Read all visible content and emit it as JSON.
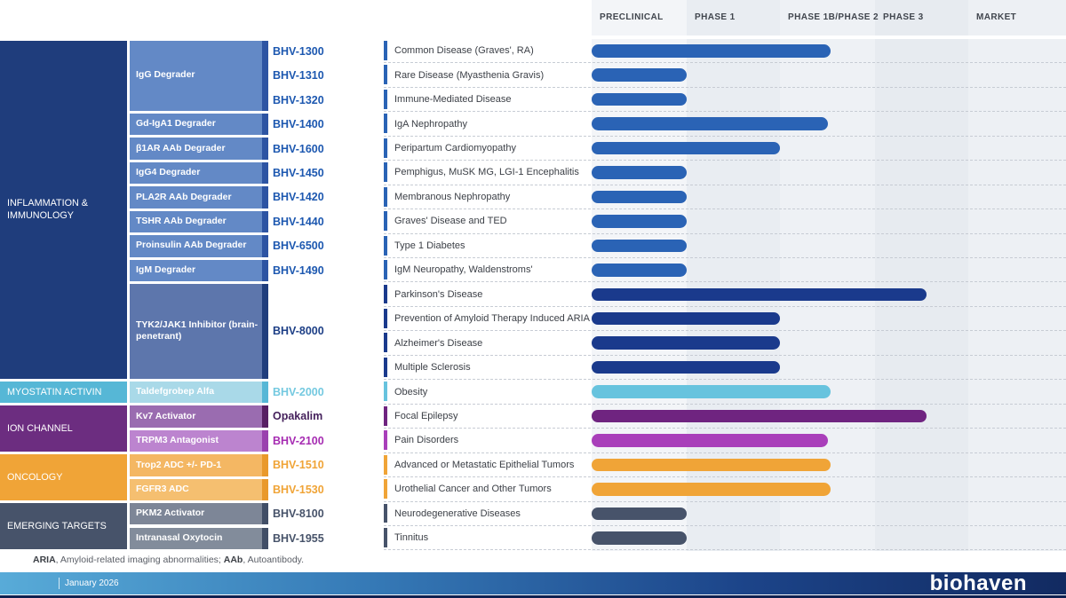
{
  "header": {
    "columns": [
      {
        "label": "PRECLINICAL",
        "bg": "#f3f5f8"
      },
      {
        "label": "PHASE 1",
        "bg": "#e9edf2"
      },
      {
        "label": "PHASE 1B/PHASE 2",
        "bg": "#eef1f5"
      },
      {
        "label": "PHASE 3",
        "bg": "#e7ebf0"
      },
      {
        "label": "MARKET",
        "bg": "#edf0f4"
      }
    ]
  },
  "left_panel": {
    "categories": [
      {
        "label": "INFLAMMATION & IMMUNOLOGY",
        "row": 0,
        "span": 14,
        "bg": "#1f3d7c"
      },
      {
        "label": "MYOSTATIN ACTIVIN",
        "row": 14,
        "span": 1,
        "bg": "#56b7d6"
      },
      {
        "label": "ION CHANNEL",
        "row": 15,
        "span": 2,
        "bg": "#6c2d80"
      },
      {
        "label": "ONCOLOGY",
        "row": 17,
        "span": 2,
        "bg": "#f0a437"
      },
      {
        "label": "EMERGING TARGETS",
        "row": 19,
        "span": 2,
        "bg": "#47536a"
      }
    ],
    "targets": [
      {
        "label": "IgG Degrader",
        "row": 0,
        "span": 3,
        "bg": "#6389c6",
        "cap": "#2d54a3",
        "codes": [
          "BHV-1300",
          "BHV-1310",
          "BHV-1320"
        ],
        "code_color": "#1d58b0"
      },
      {
        "label": "Gd-IgA1 Degrader",
        "row": 3,
        "span": 1,
        "bg": "#6389c6",
        "cap": "#2d54a3",
        "codes": [
          "BHV-1400"
        ],
        "code_color": "#1d58b0"
      },
      {
        "label": "β1AR AAb Degrader",
        "row": 4,
        "span": 1,
        "bg": "#6389c6",
        "cap": "#2d54a3",
        "codes": [
          "BHV-1600"
        ],
        "code_color": "#1d58b0"
      },
      {
        "label": "IgG4 Degrader",
        "row": 5,
        "span": 1,
        "bg": "#6389c6",
        "cap": "#2d54a3",
        "codes": [
          "BHV-1450"
        ],
        "code_color": "#1d58b0"
      },
      {
        "label": "PLA2R AAb Degrader",
        "row": 6,
        "span": 1,
        "bg": "#6389c6",
        "cap": "#2d54a3",
        "codes": [
          "BHV-1420"
        ],
        "code_color": "#1d58b0"
      },
      {
        "label": "TSHR AAb Degrader",
        "row": 7,
        "span": 1,
        "bg": "#6389c6",
        "cap": "#2d54a3",
        "codes": [
          "BHV-1440"
        ],
        "code_color": "#1d58b0"
      },
      {
        "label": "Proinsulin AAb Degrader",
        "row": 8,
        "span": 1,
        "bg": "#6389c6",
        "cap": "#2d54a3",
        "codes": [
          "BHV-6500"
        ],
        "code_color": "#1d58b0"
      },
      {
        "label": "IgM Degrader",
        "row": 9,
        "span": 1,
        "bg": "#6389c6",
        "cap": "#2d54a3",
        "codes": [
          "BHV-1490"
        ],
        "code_color": "#1d58b0"
      },
      {
        "label": "TYK2/JAK1 Inhibitor (brain-penetrant)",
        "row": 10,
        "span": 4,
        "bg": "#5d76ac",
        "cap": "#1f3d7c",
        "codes": [
          "BHV-8000"
        ],
        "code_color": "#1d3f86"
      },
      {
        "label": "Taldefgrobep Alfa",
        "row": 14,
        "span": 1,
        "bg": "#a9d9e8",
        "cap": "#56b7d6",
        "codes": [
          "BHV-2000"
        ],
        "code_color": "#74c9e0"
      },
      {
        "label": "Kv7 Activator",
        "row": 15,
        "span": 1,
        "bg": "#9a6cb0",
        "cap": "#571f63",
        "codes": [
          "Opakalim"
        ],
        "code_color": "#45215c"
      },
      {
        "label": "TRPM3 Antagonist",
        "row": 16,
        "span": 1,
        "bg": "#bc84cf",
        "cap": "#9a41ae",
        "codes": [
          "BHV-2100"
        ],
        "code_color": "#a62cb2"
      },
      {
        "label": "Trop2 ADC +/- PD-1",
        "row": 17,
        "span": 1,
        "bg": "#f4b763",
        "cap": "#e9992b",
        "codes": [
          "BHV-1510"
        ],
        "code_color": "#f0a437"
      },
      {
        "label": "FGFR3 ADC",
        "row": 18,
        "span": 1,
        "bg": "#f5bf70",
        "cap": "#e9992b",
        "codes": [
          "BHV-1530"
        ],
        "code_color": "#f0a437"
      },
      {
        "label": "PKM2 Activator",
        "row": 19,
        "span": 1,
        "bg": "#7d8697",
        "cap": "#414e66",
        "codes": [
          "BHV-8100"
        ],
        "code_color": "#47536a"
      },
      {
        "label": "Intranasal Oxytocin",
        "row": 20,
        "span": 1,
        "bg": "#828c9b",
        "cap": "#414e66",
        "codes": [
          "BHV-1955"
        ],
        "code_color": "#47536a"
      }
    ]
  },
  "chart_data": {
    "type": "bar",
    "orientation": "horizontal",
    "title": "Biohaven clinical pipeline by development phase",
    "phases": [
      "PRECLINICAL",
      "PHASE 1",
      "PHASE 1B/PHASE 2",
      "PHASE 3",
      "MARKET"
    ],
    "value_unit": "phase_reached: bar spans 0 to value; 1 = entering Phase 1, 2 = entering Phase 1B/2, 2.5 = mid Phase 1B/2, 3.55 = mid Phase 3",
    "rows": [
      {
        "indication": "Common Disease (Graves', RA)",
        "program": "IgG Degrader",
        "molecule": "BHV-1300",
        "category": "INFLAMMATION & IMMUNOLOGY",
        "phase_reached": 2.53,
        "bar_color": "#2a63b5"
      },
      {
        "indication": "Rare Disease (Myasthenia Gravis)",
        "program": "IgG Degrader",
        "molecule": "BHV-1310",
        "category": "INFLAMMATION & IMMUNOLOGY",
        "phase_reached": 1.0,
        "bar_color": "#2a63b5"
      },
      {
        "indication": "Immune-Mediated Disease",
        "program": "IgG Degrader",
        "molecule": "BHV-1320",
        "category": "INFLAMMATION & IMMUNOLOGY",
        "phase_reached": 1.0,
        "bar_color": "#2a63b5"
      },
      {
        "indication": "IgA Nephropathy",
        "program": "Gd-IgA1 Degrader",
        "molecule": "BHV-1400",
        "category": "INFLAMMATION & IMMUNOLOGY",
        "phase_reached": 2.5,
        "bar_color": "#2a63b5"
      },
      {
        "indication": "Peripartum Cardiomyopathy",
        "program": "β1AR AAb Degrader",
        "molecule": "BHV-1600",
        "category": "INFLAMMATION & IMMUNOLOGY",
        "phase_reached": 2.0,
        "bar_color": "#2a63b5"
      },
      {
        "indication": "Pemphigus, MuSK MG, LGI-1 Encephalitis",
        "program": "IgG4 Degrader",
        "molecule": "BHV-1450",
        "category": "INFLAMMATION & IMMUNOLOGY",
        "phase_reached": 1.0,
        "bar_color": "#2a63b5"
      },
      {
        "indication": "Membranous Nephropathy",
        "program": "PLA2R AAb Degrader",
        "molecule": "BHV-1420",
        "category": "INFLAMMATION & IMMUNOLOGY",
        "phase_reached": 1.0,
        "bar_color": "#2a63b5"
      },
      {
        "indication": "Graves' Disease and TED",
        "program": "TSHR AAb Degrader",
        "molecule": "BHV-1440",
        "category": "INFLAMMATION & IMMUNOLOGY",
        "phase_reached": 1.0,
        "bar_color": "#2a63b5"
      },
      {
        "indication": "Type 1 Diabetes",
        "program": "Proinsulin AAb Degrader",
        "molecule": "BHV-6500",
        "category": "INFLAMMATION & IMMUNOLOGY",
        "phase_reached": 1.0,
        "bar_color": "#2a63b5"
      },
      {
        "indication": "IgM Neuropathy, Waldenstroms'",
        "program": "IgM Degrader",
        "molecule": "BHV-1490",
        "category": "INFLAMMATION & IMMUNOLOGY",
        "phase_reached": 1.0,
        "bar_color": "#2a63b5"
      },
      {
        "indication": "Parkinson's Disease",
        "program": "TYK2/JAK1 Inhibitor (brain-penetrant)",
        "molecule": "BHV-8000",
        "category": "INFLAMMATION & IMMUNOLOGY",
        "phase_reached": 3.55,
        "bar_color": "#1a3a8c"
      },
      {
        "indication": "Prevention of Amyloid Therapy Induced ARIA",
        "program": "TYK2/JAK1 Inhibitor (brain-penetrant)",
        "molecule": "BHV-8000",
        "category": "INFLAMMATION & IMMUNOLOGY",
        "phase_reached": 2.0,
        "bar_color": "#1a3a8c"
      },
      {
        "indication": "Alzheimer's Disease",
        "program": "TYK2/JAK1 Inhibitor (brain-penetrant)",
        "molecule": "BHV-8000",
        "category": "INFLAMMATION & IMMUNOLOGY",
        "phase_reached": 2.0,
        "bar_color": "#1a3a8c"
      },
      {
        "indication": "Multiple Sclerosis",
        "program": "TYK2/JAK1 Inhibitor (brain-penetrant)",
        "molecule": "BHV-8000",
        "category": "INFLAMMATION & IMMUNOLOGY",
        "phase_reached": 2.0,
        "bar_color": "#1a3a8c"
      },
      {
        "indication": "Obesity",
        "program": "Taldefgrobep Alfa",
        "molecule": "BHV-2000",
        "category": "MYOSTATIN ACTIVIN",
        "phase_reached": 2.53,
        "bar_color": "#67c3de"
      },
      {
        "indication": "Focal Epilepsy",
        "program": "Kv7 Activator",
        "molecule": "Opakalim",
        "category": "ION CHANNEL",
        "phase_reached": 3.55,
        "bar_color": "#6f2480"
      },
      {
        "indication": "Pain Disorders",
        "program": "TRPM3 Antagonist",
        "molecule": "BHV-2100",
        "category": "ION CHANNEL",
        "phase_reached": 2.5,
        "bar_color": "#a93fba"
      },
      {
        "indication": "Advanced or Metastatic Epithelial Tumors",
        "program": "Trop2 ADC +/- PD-1",
        "molecule": "BHV-1510",
        "category": "ONCOLOGY",
        "phase_reached": 2.53,
        "bar_color": "#f0a437"
      },
      {
        "indication": "Urothelial Cancer and Other Tumors",
        "program": "FGFR3 ADC",
        "molecule": "BHV-1530",
        "category": "ONCOLOGY",
        "phase_reached": 2.53,
        "bar_color": "#f0a437"
      },
      {
        "indication": "Neurodegenerative Diseases",
        "program": "PKM2 Activator",
        "molecule": "BHV-8100",
        "category": "EMERGING TARGETS",
        "phase_reached": 1.0,
        "bar_color": "#47536a"
      },
      {
        "indication": "Tinnitus",
        "program": "Intranasal Oxytocin",
        "molecule": "BHV-1955",
        "category": "EMERGING TARGETS",
        "phase_reached": 1.0,
        "bar_color": "#47536a"
      }
    ]
  },
  "footnote": {
    "parts": [
      {
        "text": "ARIA",
        "bold": true
      },
      {
        "text": ", Amyloid-related imaging abnormalities; ",
        "bold": false
      },
      {
        "text": "AAb",
        "bold": true
      },
      {
        "text": ", Autoantibody.",
        "bold": false
      }
    ]
  },
  "footer": {
    "date_label": "January 2026",
    "logo_text": "biohaven"
  }
}
